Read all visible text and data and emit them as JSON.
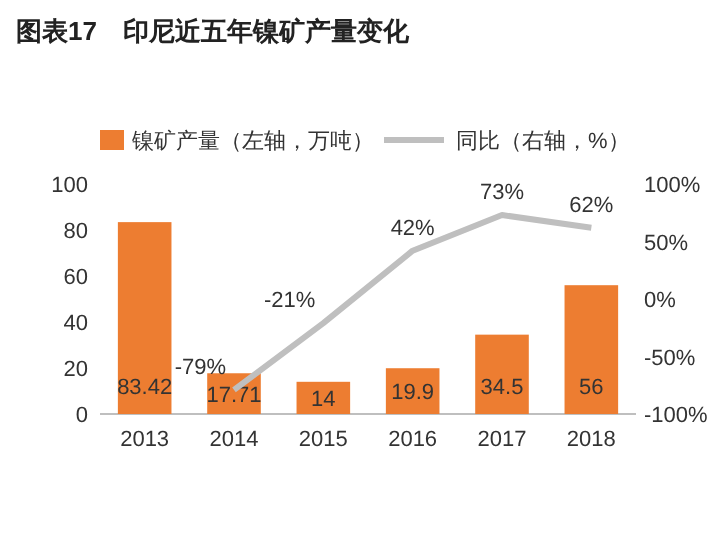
{
  "chart_data": {
    "type": "bar",
    "title": "图表17　印尼近五年镍矿产量变化",
    "categories": [
      "2013",
      "2014",
      "2015",
      "2016",
      "2017",
      "2018"
    ],
    "series": [
      {
        "name": "镍矿产量（左轴，万吨）",
        "color": "#ed7d31",
        "values": [
          83.42,
          17.71,
          14,
          19.9,
          34.5,
          56
        ],
        "value_labels": [
          "83.42",
          "17.71",
          "14",
          "19.9",
          "34.5",
          "56"
        ]
      },
      {
        "name": "同比（右轴，%）",
        "type": "line",
        "axis": "y2",
        "color": "#bfbfbf",
        "values": [
          null,
          -79,
          -21,
          42,
          73,
          62
        ],
        "value_labels": [
          null,
          "-79%",
          "-21%",
          "42%",
          "73%",
          "62%"
        ]
      }
    ],
    "ylim": [
      0,
      100
    ],
    "yticks": [
      0,
      20,
      40,
      60,
      80,
      100
    ],
    "y2lim": [
      -100,
      100
    ],
    "y2ticks": [
      {
        "value": -100,
        "label": "-100%"
      },
      {
        "value": -50,
        "label": "-50%"
      },
      {
        "value": 0,
        "label": "0%"
      },
      {
        "value": 50,
        "label": "50%"
      },
      {
        "value": 100,
        "label": "100%"
      }
    ],
    "legend": "top",
    "grid": false,
    "marker": "none",
    "line_style": "solid"
  }
}
